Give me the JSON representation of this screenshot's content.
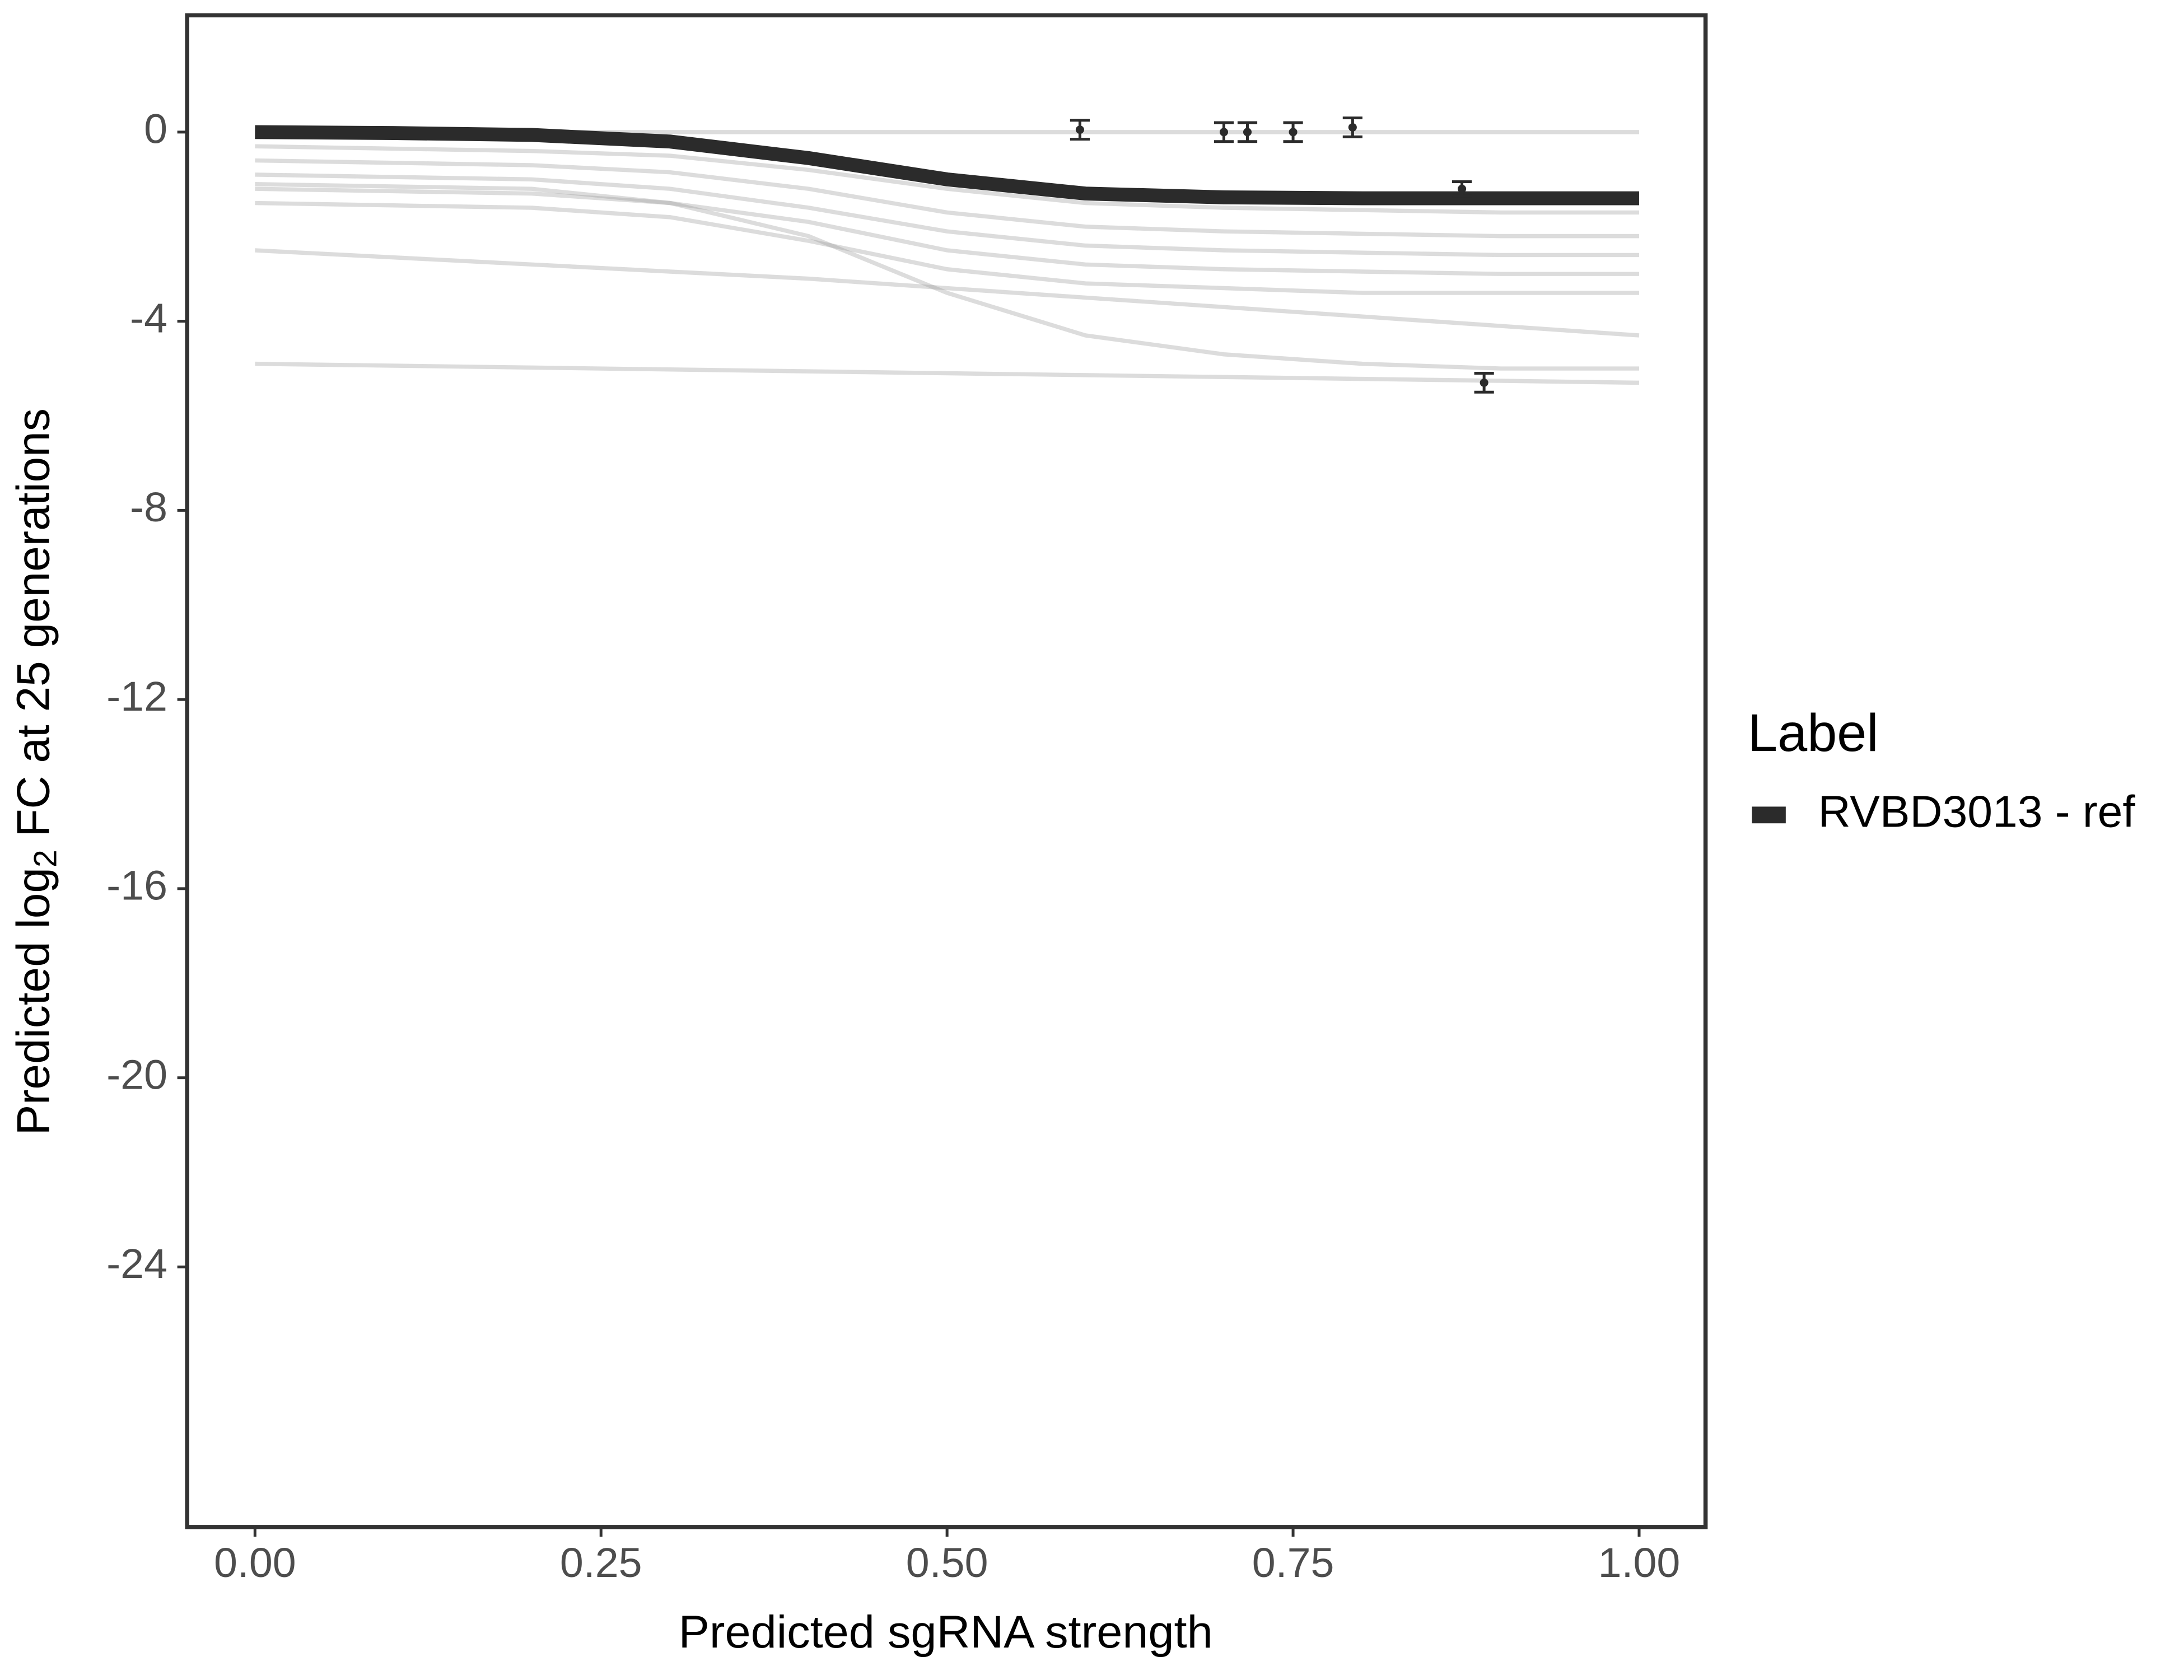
{
  "chart_data": {
    "type": "line",
    "x_label": "Predicted sgRNA strength",
    "y_label": {
      "prefix": "Predicted  log",
      "subscript": "2",
      "suffix": " FC at 25 generations"
    },
    "legend_title": "Label",
    "x": [
      0,
      0.1,
      0.2,
      0.3,
      0.4,
      0.5,
      0.6,
      0.7,
      0.8,
      0.9,
      1.0
    ],
    "series": [
      {
        "name": "RVBD3013 - ref",
        "color": "#2b2b2b",
        "values": [
          0,
          -0.02,
          -0.06,
          -0.2,
          -0.55,
          -1.0,
          -1.3,
          -1.38,
          -1.4,
          -1.4,
          -1.4
        ]
      }
    ],
    "draws": {
      "color": "#9a9a9a",
      "lines": [
        [
          0,
          0,
          0,
          0,
          0,
          0,
          0,
          0,
          0,
          0,
          0
        ],
        [
          -0.3,
          -0.35,
          -0.4,
          -0.5,
          -0.8,
          -1.2,
          -1.5,
          -1.6,
          -1.65,
          -1.7,
          -1.7
        ],
        [
          -0.6,
          -0.65,
          -0.7,
          -0.85,
          -1.2,
          -1.7,
          -2.0,
          -2.1,
          -2.15,
          -2.2,
          -2.2
        ],
        [
          -0.9,
          -0.95,
          -1.0,
          -1.2,
          -1.6,
          -2.1,
          -2.4,
          -2.5,
          -2.55,
          -2.6,
          -2.6
        ],
        [
          -1.2,
          -1.25,
          -1.3,
          -1.5,
          -1.9,
          -2.5,
          -2.8,
          -2.9,
          -2.95,
          -3.0,
          -3.0
        ],
        [
          -1.5,
          -1.55,
          -1.6,
          -1.8,
          -2.3,
          -2.9,
          -3.2,
          -3.3,
          -3.4,
          -3.4,
          -3.4
        ],
        [
          -1.1,
          -1.15,
          -1.2,
          -1.5,
          -2.2,
          -3.4,
          -4.3,
          -4.7,
          -4.9,
          -5.0,
          -5.0
        ],
        [
          -2.5,
          -2.65,
          -2.8,
          -2.95,
          -3.1,
          -3.3,
          -3.5,
          -3.7,
          -3.9,
          -4.1,
          -4.3
        ],
        [
          -4.9,
          -4.94,
          -4.98,
          -5.02,
          -5.06,
          -5.1,
          -5.14,
          -5.18,
          -5.22,
          -5.26,
          -5.3
        ]
      ]
    },
    "points": {
      "color": "#2b2b2b",
      "x": [
        0.596,
        0.7,
        0.717,
        0.75,
        0.793,
        0.872,
        0.888
      ],
      "values": [
        0.05,
        0,
        0,
        0,
        0.1,
        -1.2,
        -5.3
      ],
      "errors": [
        0.2,
        0.2,
        0.2,
        0.2,
        0.2,
        0.15,
        0.2
      ]
    },
    "xlim": [
      -0.049,
      1.048
    ],
    "ylim": [
      -29.5,
      2.47
    ],
    "xticks": [
      {
        "value": 0,
        "label": "0.00"
      },
      {
        "value": 0.25,
        "label": "0.25"
      },
      {
        "value": 0.5,
        "label": "0.50"
      },
      {
        "value": 0.75,
        "label": "0.75"
      },
      {
        "value": 1,
        "label": "1.00"
      }
    ],
    "yticks": [
      0,
      -4,
      -8,
      -12,
      -16,
      -20,
      -24
    ],
    "grid": false
  }
}
